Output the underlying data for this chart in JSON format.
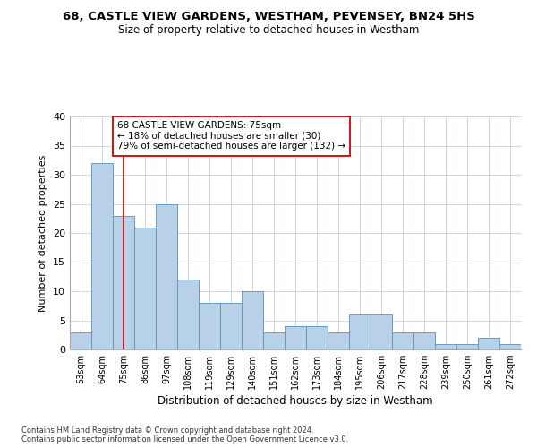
{
  "title1": "68, CASTLE VIEW GARDENS, WESTHAM, PEVENSEY, BN24 5HS",
  "title2": "Size of property relative to detached houses in Westham",
  "xlabel": "Distribution of detached houses by size in Westham",
  "ylabel": "Number of detached properties",
  "categories": [
    "53sqm",
    "64sqm",
    "75sqm",
    "86sqm",
    "97sqm",
    "108sqm",
    "119sqm",
    "129sqm",
    "140sqm",
    "151sqm",
    "162sqm",
    "173sqm",
    "184sqm",
    "195sqm",
    "206sqm",
    "217sqm",
    "228sqm",
    "239sqm",
    "250sqm",
    "261sqm",
    "272sqm"
  ],
  "values": [
    3,
    32,
    23,
    21,
    25,
    12,
    8,
    8,
    10,
    3,
    4,
    4,
    3,
    6,
    6,
    3,
    3,
    1,
    1,
    2,
    1
  ],
  "bar_color": "#b8d0e8",
  "bar_edge_color": "#5a8fbb",
  "highlight_index": 2,
  "highlight_line_color": "#cc0000",
  "annotation_line1": "68 CASTLE VIEW GARDENS: 75sqm",
  "annotation_line2": "← 18% of detached houses are smaller (30)",
  "annotation_line3": "79% of semi-detached houses are larger (132) →",
  "annotation_box_color": "#ffffff",
  "annotation_box_edge": "#cc0000",
  "ylim": [
    0,
    40
  ],
  "yticks": [
    0,
    5,
    10,
    15,
    20,
    25,
    30,
    35,
    40
  ],
  "footer": "Contains HM Land Registry data © Crown copyright and database right 2024.\nContains public sector information licensed under the Open Government Licence v3.0.",
  "bg_color": "#ffffff",
  "grid_color": "#ccd6e8"
}
